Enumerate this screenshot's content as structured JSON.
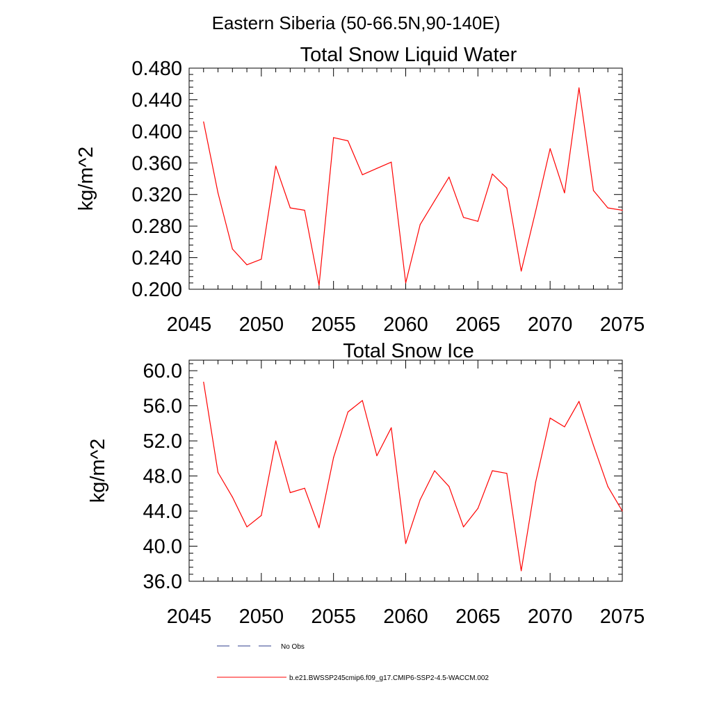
{
  "suptitle": "Eastern Siberia (50-66.5N,90-140E)",
  "legend": {
    "entries": [
      {
        "label": "No Obs",
        "style": "dashed",
        "color": "#2c3e8c"
      },
      {
        "label": "b.e21.BWSSP245cmip6.f09_g17.CMIP6-SSP2-4.5-WACCM.002",
        "style": "solid",
        "color": "#ff0000"
      }
    ]
  },
  "chart_data": [
    {
      "type": "line",
      "title": "Total Snow Liquid Water",
      "xlabel": "",
      "ylabel": "kg/m^2",
      "xlim": [
        2045,
        2075
      ],
      "ylim": [
        0.2,
        0.48
      ],
      "xticks": [
        2045,
        2050,
        2055,
        2060,
        2065,
        2070,
        2075
      ],
      "xtick_labels": [
        "2045",
        "2050",
        "2055",
        "2060",
        "2065",
        "2070",
        "2075"
      ],
      "yticks": [
        0.2,
        0.24,
        0.28,
        0.32,
        0.36,
        0.4,
        0.44,
        0.48
      ],
      "ytick_labels": [
        "0.200",
        "0.240",
        "0.280",
        "0.320",
        "0.360",
        "0.400",
        "0.440",
        "0.480"
      ],
      "grid": false,
      "series": [
        {
          "color": "#ff0000",
          "x": [
            2046,
            2047,
            2048,
            2049,
            2050,
            2051,
            2052,
            2053,
            2054,
            2055,
            2056,
            2057,
            2058,
            2059,
            2060,
            2061,
            2062,
            2063,
            2064,
            2065,
            2066,
            2067,
            2068,
            2069,
            2070,
            2071,
            2072,
            2073,
            2074,
            2075
          ],
          "values": [
            0.412,
            0.322,
            0.251,
            0.231,
            0.238,
            0.356,
            0.303,
            0.3,
            0.205,
            0.392,
            0.388,
            0.345,
            0.353,
            0.361,
            0.208,
            0.282,
            0.312,
            0.342,
            0.291,
            0.286,
            0.346,
            0.328,
            0.223,
            0.299,
            0.378,
            0.322,
            0.455,
            0.325,
            0.303,
            0.3
          ]
        }
      ]
    },
    {
      "type": "line",
      "title": "Total Snow Ice",
      "xlabel": "",
      "ylabel": "kg/m^2",
      "xlim": [
        2045,
        2075
      ],
      "ylim": [
        36.0,
        61.2
      ],
      "xticks": [
        2045,
        2050,
        2055,
        2060,
        2065,
        2070,
        2075
      ],
      "xtick_labels": [
        "2045",
        "2050",
        "2055",
        "2060",
        "2065",
        "2070",
        "2075"
      ],
      "yticks": [
        36,
        40,
        44,
        48,
        52,
        56,
        60
      ],
      "ytick_labels": [
        "36.0",
        "40.0",
        "44.0",
        "48.0",
        "52.0",
        "56.0",
        "60.0"
      ],
      "grid": false,
      "series": [
        {
          "color": "#ff0000",
          "x": [
            2046,
            2047,
            2048,
            2049,
            2050,
            2051,
            2052,
            2053,
            2054,
            2055,
            2056,
            2057,
            2058,
            2059,
            2060,
            2061,
            2062,
            2063,
            2064,
            2065,
            2066,
            2067,
            2068,
            2069,
            2070,
            2071,
            2072,
            2073,
            2074,
            2075
          ],
          "values": [
            58.7,
            48.4,
            45.6,
            42.2,
            43.5,
            52.0,
            46.1,
            46.6,
            42.1,
            50.1,
            55.3,
            56.6,
            50.3,
            53.5,
            40.3,
            45.3,
            48.6,
            46.8,
            42.2,
            44.3,
            48.6,
            48.3,
            37.2,
            47.3,
            54.6,
            53.6,
            56.5,
            51.5,
            46.8,
            44.0
          ]
        }
      ]
    }
  ]
}
